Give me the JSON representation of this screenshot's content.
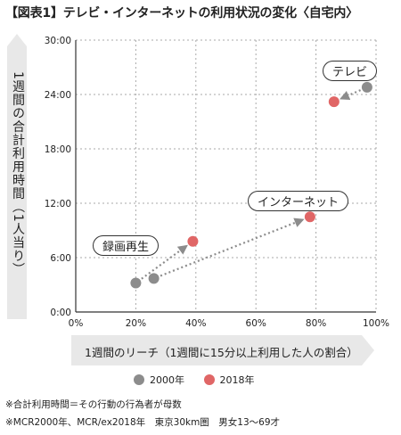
{
  "title": "【図表1】テレビ・インターネットの利用状況の変化〈自宅内〉",
  "ylabel": "1週間の合計利用時間（1人当り）",
  "xlabel": "1週間のリーチ（1週間に15分以上利用した人の割合）",
  "legend": {
    "s2000": "2000年",
    "s2018": "2018年"
  },
  "colors": {
    "s2000": "#8c8c8c",
    "s2018": "#e06666",
    "arrow": "#8c8c8c",
    "grid": "#aaaaaa",
    "label_bg": "#e8e8e8"
  },
  "notes": {
    "line1": "※合計利用時間＝その行動の行為者が母数",
    "line2": "※MCR2000年、MCR/ex2018年　東京30km圏　男女13〜69才"
  },
  "callouts": {
    "tv": "テレビ",
    "internet": "インターネット",
    "recorded": "録画再生"
  },
  "chart_data": {
    "type": "scatter",
    "x_ticks": [
      "0%",
      "20%",
      "40%",
      "60%",
      "80%",
      "100%"
    ],
    "y_ticks": [
      "0:00",
      "6:00",
      "12:00",
      "18:00",
      "24:00",
      "30:00"
    ],
    "xlim": [
      0,
      100
    ],
    "ylim": [
      0,
      30
    ],
    "grid": true,
    "series": [
      {
        "name": "2000年",
        "points": [
          {
            "label": "テレビ",
            "x": 97,
            "y": 24.8
          },
          {
            "label": "インターネット",
            "x": 26,
            "y": 3.7
          },
          {
            "label": "録画再生",
            "x": 20,
            "y": 3.2
          }
        ]
      },
      {
        "name": "2018年",
        "points": [
          {
            "label": "テレビ",
            "x": 86,
            "y": 23.2
          },
          {
            "label": "インターネット",
            "x": 78,
            "y": 10.5
          },
          {
            "label": "録画再生",
            "x": 39,
            "y": 7.8
          }
        ]
      }
    ]
  }
}
